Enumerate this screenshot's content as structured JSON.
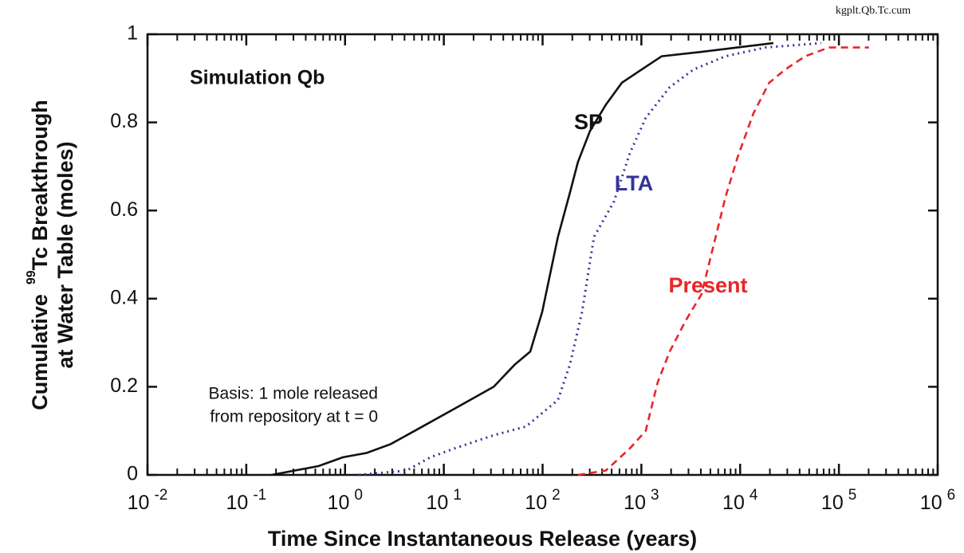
{
  "chart_data": {
    "type": "line",
    "log_x": true,
    "xlabel": "Time Since Instantaneous Release (years)",
    "ylabel": {
      "line1": "Cumulative",
      "superscript": "99",
      "line1_rest": "Tc Breakthrough",
      "line2": "at Water Table (moles)"
    },
    "annotations": {
      "corner": "kgplt.Qb.Tc.cum",
      "simulation": "Simulation Qb",
      "basis1": "Basis: 1 mole released",
      "basis2": "from repository at t = 0"
    },
    "xlim": [
      0.01,
      1000000
    ],
    "ylim": [
      0,
      1
    ],
    "xticks": [
      {
        "value": 0.01,
        "label": "10",
        "exponent": "-2"
      },
      {
        "value": 0.1,
        "label": "10",
        "exponent": "-1"
      },
      {
        "value": 1,
        "label": "10",
        "exponent": "0"
      },
      {
        "value": 10,
        "label": "10",
        "exponent": "1"
      },
      {
        "value": 100,
        "label": "10",
        "exponent": "2"
      },
      {
        "value": 1000,
        "label": "10",
        "exponent": "3"
      },
      {
        "value": 10000,
        "label": "10",
        "exponent": "4"
      },
      {
        "value": 100000,
        "label": "10",
        "exponent": "5"
      },
      {
        "value": 1000000,
        "label": "10",
        "exponent": "6"
      }
    ],
    "yticks": [
      0,
      0.2,
      0.4,
      0.6,
      0.8,
      1
    ],
    "series": [
      {
        "name": "SP",
        "color": "#111111",
        "style": "solid",
        "x": [
          0.18,
          0.54,
          0.95,
          1.66,
          2.9,
          6.1,
          12.8,
          32,
          52,
          75,
          99,
          143,
          189,
          228,
          301,
          437,
          634,
          1008,
          1607,
          4065,
          21677
        ],
        "values": [
          0,
          0.02,
          0.04,
          0.05,
          0.07,
          0.11,
          0.15,
          0.2,
          0.25,
          0.28,
          0.37,
          0.54,
          0.64,
          0.71,
          0.78,
          0.84,
          0.89,
          0.92,
          0.95,
          0.96,
          0.98
        ]
      },
      {
        "name": "LTA",
        "color": "#333399",
        "style": "dotted",
        "x": [
          1.38,
          4.2,
          7.3,
          12.8,
          32,
          68,
          143,
          189,
          251,
          331,
          527,
          764,
          1107,
          1935,
          3380,
          7100,
          18000,
          66000
        ],
        "values": [
          0,
          0.01,
          0.04,
          0.06,
          0.09,
          0.11,
          0.17,
          0.25,
          0.37,
          0.54,
          0.62,
          0.73,
          0.81,
          0.88,
          0.92,
          0.95,
          0.97,
          0.98
        ]
      },
      {
        "name": "Present",
        "color": "#e8262a",
        "style": "dashed",
        "x": [
          228,
          437,
          764,
          1107,
          1462,
          1935,
          2805,
          4065,
          5370,
          7100,
          9400,
          13600,
          19700,
          28600,
          45600,
          79400,
          201000
        ],
        "values": [
          0,
          0.01,
          0.06,
          0.1,
          0.21,
          0.28,
          0.35,
          0.41,
          0.52,
          0.63,
          0.72,
          0.82,
          0.89,
          0.92,
          0.95,
          0.97,
          0.97
        ]
      }
    ]
  }
}
